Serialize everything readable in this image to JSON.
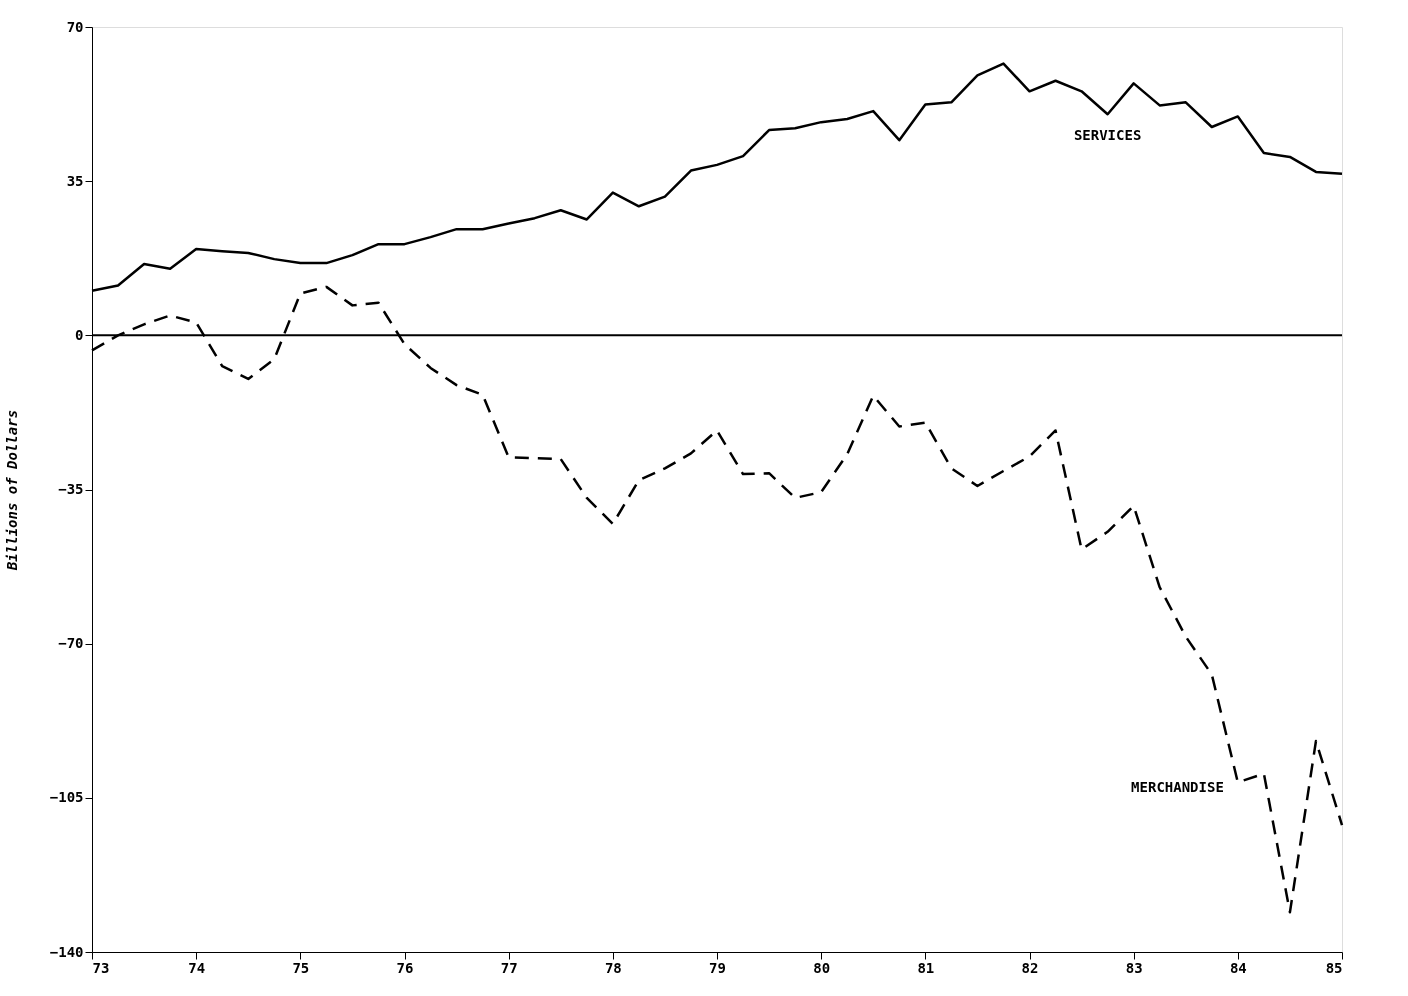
{
  "chart_data": {
    "type": "line",
    "ylabel": "Billions of Dollars",
    "x": [
      73.0,
      73.25,
      73.5,
      73.75,
      74.0,
      74.25,
      74.5,
      74.75,
      75.0,
      75.25,
      75.5,
      75.75,
      76.0,
      76.25,
      76.5,
      76.75,
      77.0,
      77.25,
      77.5,
      77.75,
      78.0,
      78.25,
      78.5,
      78.75,
      79.0,
      79.25,
      79.5,
      79.75,
      80.0,
      80.25,
      80.5,
      80.75,
      81.0,
      81.25,
      81.5,
      81.75,
      82.0,
      82.25,
      82.5,
      82.75,
      83.0,
      83.25,
      83.5,
      83.75,
      84.0,
      84.25,
      84.5,
      84.75,
      85.0
    ],
    "series": [
      {
        "name": "SERVICES",
        "color": "#000000",
        "line_style": "solid",
        "values": [
          10.1,
          11.3,
          16.2,
          15.1,
          19.6,
          19.1,
          18.7,
          17.3,
          16.4,
          16.4,
          18.2,
          20.7,
          20.7,
          22.3,
          24.1,
          24.1,
          25.4,
          26.6,
          28.4,
          26.3,
          32.4,
          29.3,
          31.5,
          37.4,
          38.7,
          40.7,
          46.6,
          47.0,
          48.4,
          49.1,
          50.9,
          44.3,
          52.4,
          52.9,
          59.0,
          61.7,
          55.4,
          57.8,
          55.4,
          50.2,
          57.2,
          52.2,
          52.9,
          47.3,
          49.7,
          41.4,
          40.5,
          37.1,
          36.7
        ]
      },
      {
        "name": "MERCHANDISE",
        "color": "#000000",
        "line_style": "dashed",
        "values": [
          -3.4,
          0,
          2.5,
          4.5,
          2.9,
          -7.0,
          -9.9,
          -5.4,
          9.5,
          11.0,
          6.8,
          7.4,
          -2.0,
          -7.4,
          -11.3,
          -13.5,
          -27.7,
          -27.9,
          -28.1,
          -36.9,
          -42.8,
          -32.9,
          -30.2,
          -26.8,
          -21.6,
          -31.5,
          -31.3,
          -36.9,
          -35.6,
          -27.0,
          -13.7,
          -20.7,
          -19.8,
          -30.2,
          -34.2,
          -30.8,
          -27.5,
          -21.6,
          -48.6,
          -44.6,
          -38.7,
          -57.2,
          -68.4,
          -77.0,
          -101.5,
          -99.5,
          -131.0,
          -92.1,
          -111.2
        ]
      }
    ],
    "xlim": [
      73,
      85
    ],
    "xticks": [
      73,
      74,
      75,
      76,
      77,
      78,
      79,
      80,
      81,
      82,
      83,
      84,
      85
    ],
    "ylim": [
      -140,
      70
    ],
    "yticks": [
      -140,
      -105,
      -70,
      -35,
      0,
      35,
      70
    ],
    "ref_lines": [
      {
        "axis": "y",
        "value": 0
      }
    ],
    "grid": false
  }
}
